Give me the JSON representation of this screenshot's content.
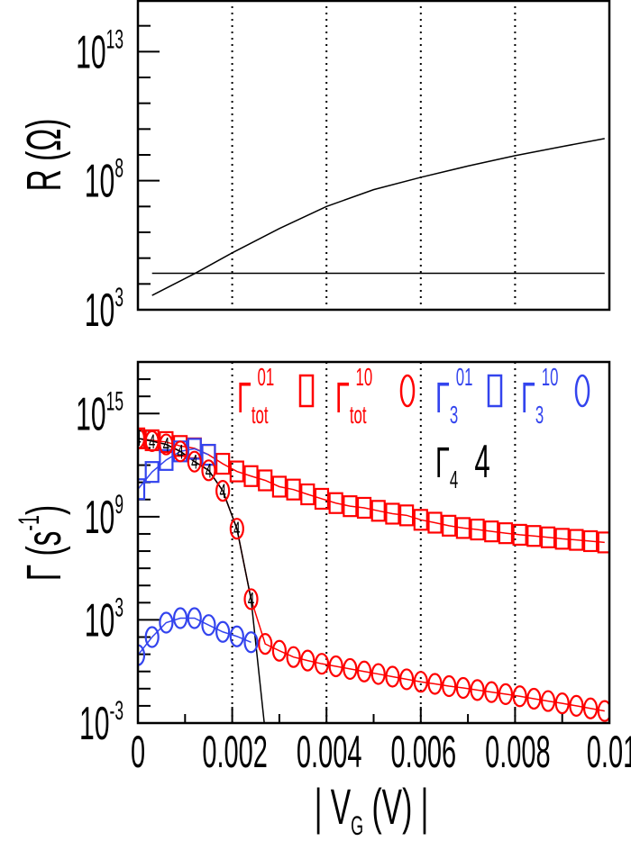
{
  "chart_data": [
    {
      "type": "line",
      "ylabel": "R (Ω)",
      "xlim": [
        0,
        0.01
      ],
      "ylim": [
        1000.0,
        1000000000000000.0
      ],
      "yscale": "log",
      "y_tick_labels": [
        {
          "base": "10",
          "exp": "3",
          "value": 1000.0
        },
        {
          "base": "10",
          "exp": "8",
          "value": 100000000.0
        },
        {
          "base": "10",
          "exp": "13",
          "value": 10000000000000.0
        }
      ],
      "vertical_dotted_lines_at": [
        0.002,
        0.004,
        0.006,
        0.008
      ],
      "colors": {
        "curve": "#000000",
        "reference": "#000000"
      },
      "series": [
        {
          "x": [
            0.0003,
            0.0012,
            0.002,
            0.003,
            0.004,
            0.005,
            0.006,
            0.007,
            0.008,
            0.009,
            0.0099
          ],
          "y": [
            3600.0,
            25000.0,
            160000.0,
            1400000.0,
            10000000.0,
            45000000.0,
            135000000.0,
            370000000.0,
            930000000.0,
            2100000000.0,
            4300000000.0
          ]
        },
        {
          "x": [
            0.0003,
            0.0099
          ],
          "y": [
            25800.0,
            25800.0
          ]
        }
      ]
    },
    {
      "type": "line",
      "ylabel_base": "Γ (s",
      "ylabel_exp": "-1",
      "ylabel_close": ")",
      "xlabel_pre": "| V",
      "xlabel_sub": "G",
      "xlabel_post": "(V) |",
      "xlim": [
        0,
        0.01
      ],
      "ylim": [
        0.001,
        1e+18
      ],
      "yscale": "log",
      "x_tick_labels": [
        "0",
        "0.002",
        "0.004",
        "0.006",
        "0.008",
        "0.01"
      ],
      "x_tick_values": [
        0,
        0.002,
        0.004,
        0.006,
        0.008,
        0.01
      ],
      "y_tick_labels": [
        {
          "base": "10",
          "exp": "-3",
          "value": 0.001
        },
        {
          "base": "10",
          "exp": "3",
          "value": 1000.0
        },
        {
          "base": "10",
          "exp": "9",
          "value": 1000000000.0
        },
        {
          "base": "10",
          "exp": "15",
          "value": 1000000000000000.0
        }
      ],
      "vertical_dotted_lines_at": [
        0.002,
        0.004,
        0.006,
        0.008
      ],
      "legend_placement": "top",
      "series": [
        {
          "name": "Γ",
          "sub": "tot",
          "sup": "01",
          "marker": "square",
          "color": "#ff0000",
          "x": [
            0,
            0.0003,
            0.0006,
            0.0009,
            0.0012,
            0.0015,
            0.0018,
            0.0021,
            0.0024,
            0.0027,
            0.003,
            0.0033,
            0.0036,
            0.0039,
            0.0042,
            0.0045,
            0.0048,
            0.0051,
            0.0054,
            0.0057,
            0.006,
            0.0063,
            0.0066,
            0.0069,
            0.0072,
            0.0075,
            0.0078,
            0.0081,
            0.0084,
            0.0087,
            0.009,
            0.0093,
            0.0096,
            0.0099
          ],
          "y": [
            36000000000000.0,
            28000000000000.0,
            22000000000000.0,
            13000000000000.0,
            9500000000000.0,
            4000000000000.0,
            1200000000000.0,
            430000000000.0,
            230000000000.0,
            130000000000.0,
            56000000000.0,
            38000000000.0,
            20000000000.0,
            11000000000.0,
            6200000000.0,
            4100000000.0,
            3300000000.0,
            2200000000.0,
            1500000000.0,
            1200000000.0,
            660000000.0,
            450000000.0,
            300000000.0,
            220000000.0,
            180000000.0,
            140000000.0,
            110000000.0,
            89000000.0,
            76000000.0,
            63000000.0,
            52000000.0,
            45000000.0,
            38000000.0,
            32000000.0
          ]
        },
        {
          "name": "Γ",
          "sub": "tot",
          "sup": "10",
          "marker": "circle",
          "color": "#ff0000",
          "x": [
            0,
            0.0003,
            0.0006,
            0.0009,
            0.0012,
            0.0015,
            0.0018,
            0.0021,
            0.0024,
            0.0027,
            0.003,
            0.0033,
            0.0036,
            0.0039,
            0.0042,
            0.0045,
            0.0048,
            0.0051,
            0.0054,
            0.0057,
            0.006,
            0.0063,
            0.0066,
            0.0069,
            0.0072,
            0.0075,
            0.0078,
            0.0081,
            0.0084,
            0.0087,
            0.009,
            0.0093,
            0.0096,
            0.0099
          ],
          "y": [
            36000000000000.0,
            25000000000000.0,
            16000000000000.0,
            6300000000000.0,
            1600000000000.0,
            500000000000.0,
            32000000000.0,
            200000000.0,
            16000.0,
            40,
            16,
            6.9,
            4.3,
            2.8,
            2,
            1.4,
            1,
            0.71,
            0.5,
            0.35,
            0.25,
            0.19,
            0.14,
            0.11,
            0.083,
            0.063,
            0.048,
            0.036,
            0.026,
            0.019,
            0.014,
            0.01,
            0.0071,
            0.005
          ]
        },
        {
          "name": "Γ",
          "sub": "3",
          "sup": "01",
          "marker": "square",
          "color": "#3344ee",
          "x": [
            0,
            0.0003,
            0.0006,
            0.0009,
            0.0012,
            0.0015
          ],
          "y": [
            40000000000.0,
            400000000000.0,
            2000000000000.0,
            6300000000000.0,
            8900000000000.0,
            4000000000000.0
          ]
        },
        {
          "name": "Γ",
          "sub": "3",
          "sup": "10",
          "marker": "circle",
          "color": "#3344ee",
          "x": [
            0,
            0.0003,
            0.0006,
            0.0009,
            0.0012,
            0.0015,
            0.0018,
            0.0021,
            0.0024
          ],
          "y": [
            8.9,
            100,
            690,
            1260,
            1260,
            500,
            200,
            110,
            50
          ]
        },
        {
          "name": "Γ",
          "sub": "4",
          "sup": "",
          "marker": "4",
          "color": "#000000",
          "x": [
            0,
            0.0003,
            0.0006,
            0.0009,
            0.0012,
            0.0015,
            0.0018,
            0.0021,
            0.0024
          ],
          "y": [
            36000000000000.0,
            25000000000000.0,
            16000000000000.0,
            6300000000000.0,
            1600000000000.0,
            500000000000.0,
            32000000000.0,
            200000000.0,
            16000.0
          ],
          "line_continues_to": {
            "x": 0.00268,
            "y": 0.001
          }
        }
      ]
    }
  ]
}
